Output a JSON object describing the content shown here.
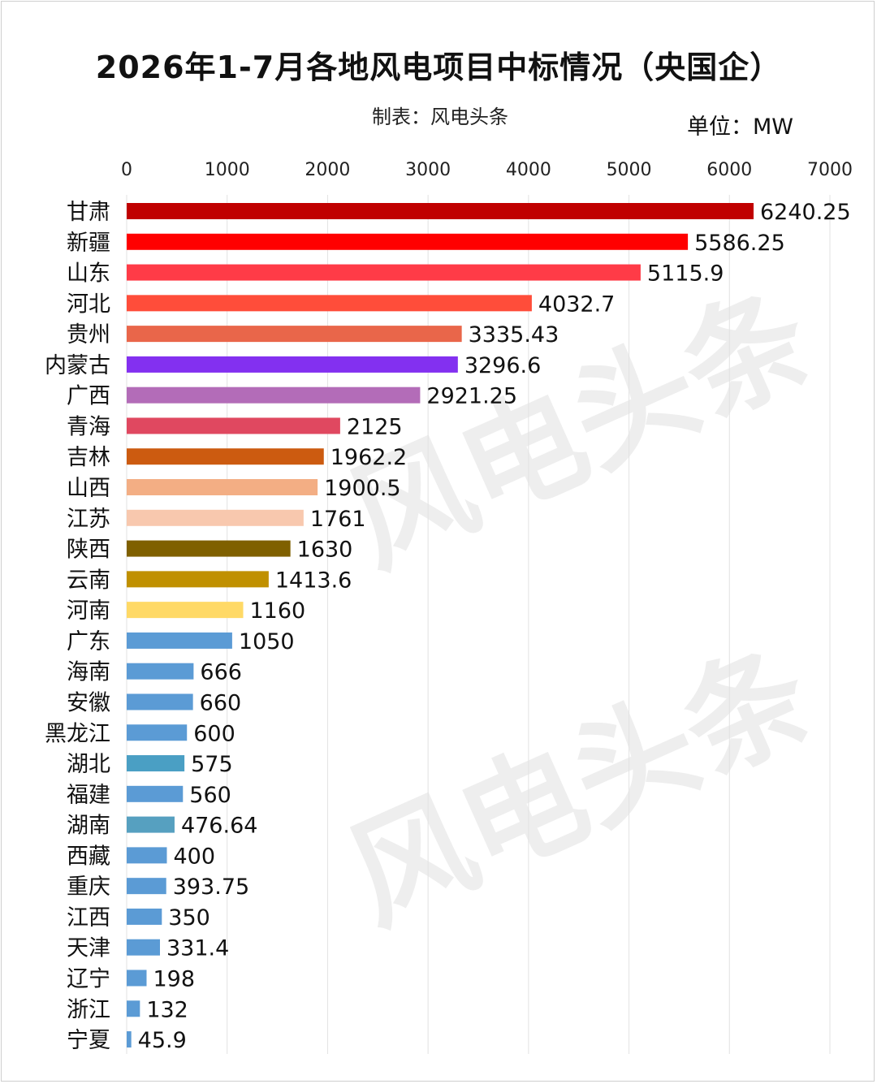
{
  "header": {
    "title": "2026年1-7月各地风电项目中标情况（央国企）",
    "maker": "制表：风电头条",
    "unit": "单位：MW"
  },
  "watermark": {
    "text": "风电头条"
  },
  "chart_data": {
    "type": "bar",
    "orientation": "horizontal",
    "title": "",
    "xlabel": "",
    "ylabel": "",
    "xlim": [
      0,
      7000
    ],
    "x_ticks": [
      0,
      1000,
      2000,
      3000,
      4000,
      5000,
      6000,
      7000
    ],
    "grid": "vertical",
    "categories": [
      "甘肃",
      "新疆",
      "山东",
      "河北",
      "贵州",
      "内蒙古",
      "广西",
      "青海",
      "吉林",
      "山西",
      "江苏",
      "陕西",
      "云南",
      "河南",
      "广东",
      "海南",
      "安徽",
      "黑龙江",
      "湖北",
      "福建",
      "湖南",
      "西藏",
      "重庆",
      "江西",
      "天津",
      "辽宁",
      "浙江",
      "宁夏"
    ],
    "values": [
      6240.25,
      5586.25,
      5115.9,
      4032.7,
      3335.43,
      3296.6,
      2921.25,
      2125,
      1962.2,
      1900.5,
      1761,
      1630,
      1413.6,
      1160,
      1050,
      666,
      660,
      600,
      575,
      560,
      476.64,
      400,
      393.75,
      350,
      331.4,
      198,
      132,
      45.9
    ],
    "value_labels": [
      "6240.25",
      "5586.25",
      "5115.9",
      "4032.7",
      "3335.43",
      "3296.6",
      "2921.25",
      "2125",
      "1962.2",
      "1900.5",
      "1761",
      "1630",
      "1413.6",
      "1160",
      "1050",
      "666",
      "660",
      "600",
      "575",
      "560",
      "476.64",
      "400",
      "393.75",
      "350",
      "331.4",
      "198",
      "132",
      "45.9"
    ],
    "colors": [
      "#c00000",
      "#ff0000",
      "#ff3b47",
      "#ff4d3a",
      "#e9664a",
      "#8330f0",
      "#b36cb8",
      "#e04860",
      "#cc5b10",
      "#f3ae84",
      "#f8c8ae",
      "#7f6000",
      "#c09000",
      "#ffd966",
      "#5b9bd5",
      "#5b9bd5",
      "#5b9bd5",
      "#5b9bd5",
      "#4a9fc4",
      "#5b9bd5",
      "#56a0c0",
      "#5b9bd5",
      "#5b9bd5",
      "#5b9bd5",
      "#5b9bd5",
      "#5b9bd5",
      "#5b9bd5",
      "#5b9bd5"
    ]
  }
}
